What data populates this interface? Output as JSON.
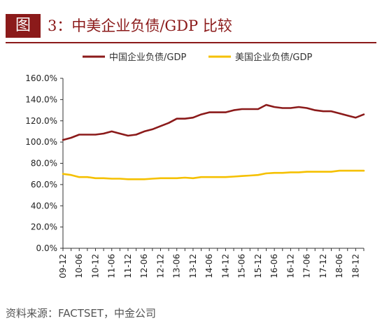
{
  "figure": {
    "label": "图",
    "title": "3：中美企业负债/GDP 比较"
  },
  "source": "资料来源：FACTSET，中金公司",
  "colors": {
    "brand": "#8b1a1a",
    "china": "#8b1a1a",
    "us": "#f5c000"
  },
  "chart_data": {
    "type": "line",
    "title": "",
    "xlabel": "",
    "ylabel": "",
    "ylim": [
      0,
      160
    ],
    "y_ticks": [
      "0.0%",
      "20.0%",
      "40.0%",
      "60.0%",
      "80.0%",
      "100.0%",
      "120.0%",
      "140.0%",
      "160.0%"
    ],
    "grid": false,
    "legend": "top",
    "x_tick_labels": [
      "09-12",
      "10-06",
      "10-12",
      "11-06",
      "11-12",
      "12-06",
      "12-12",
      "13-06",
      "13-12",
      "14-06",
      "14-12",
      "15-06",
      "15-12",
      "16-06",
      "16-12",
      "17-06",
      "17-12",
      "18-06",
      "18-12"
    ],
    "x": [
      "09-12",
      "10-03",
      "10-06",
      "10-09",
      "10-12",
      "11-03",
      "11-06",
      "11-09",
      "11-12",
      "12-03",
      "12-06",
      "12-09",
      "12-12",
      "13-03",
      "13-06",
      "13-09",
      "13-12",
      "14-03",
      "14-06",
      "14-09",
      "14-12",
      "15-03",
      "15-06",
      "15-09",
      "15-12",
      "16-03",
      "16-06",
      "16-09",
      "16-12",
      "17-03",
      "17-06",
      "17-09",
      "17-12",
      "18-03",
      "18-06",
      "18-09",
      "18-12",
      "19-03"
    ],
    "series": [
      {
        "name": "中国企业负债/GDP",
        "color": "#8b1a1a",
        "values": [
          102,
          104,
          107,
          107,
          107,
          108,
          110,
          108,
          106,
          107,
          110,
          112,
          115,
          118,
          122,
          122,
          123,
          126,
          128,
          128,
          128,
          130,
          131,
          131,
          131,
          135,
          133,
          132,
          132,
          133,
          132,
          130,
          129,
          129,
          127,
          125,
          123,
          126
        ]
      },
      {
        "name": "美国企业负债/GDP",
        "color": "#f5c000",
        "values": [
          70,
          69,
          67,
          67,
          66,
          66,
          65.5,
          65.5,
          65,
          65,
          65,
          65.5,
          66,
          66,
          66,
          66.5,
          66,
          67,
          67,
          67,
          67,
          67.5,
          68,
          68.5,
          69,
          70.5,
          71,
          71,
          71.5,
          71.5,
          72,
          72,
          72,
          72,
          73,
          73,
          73,
          73
        ]
      }
    ]
  }
}
